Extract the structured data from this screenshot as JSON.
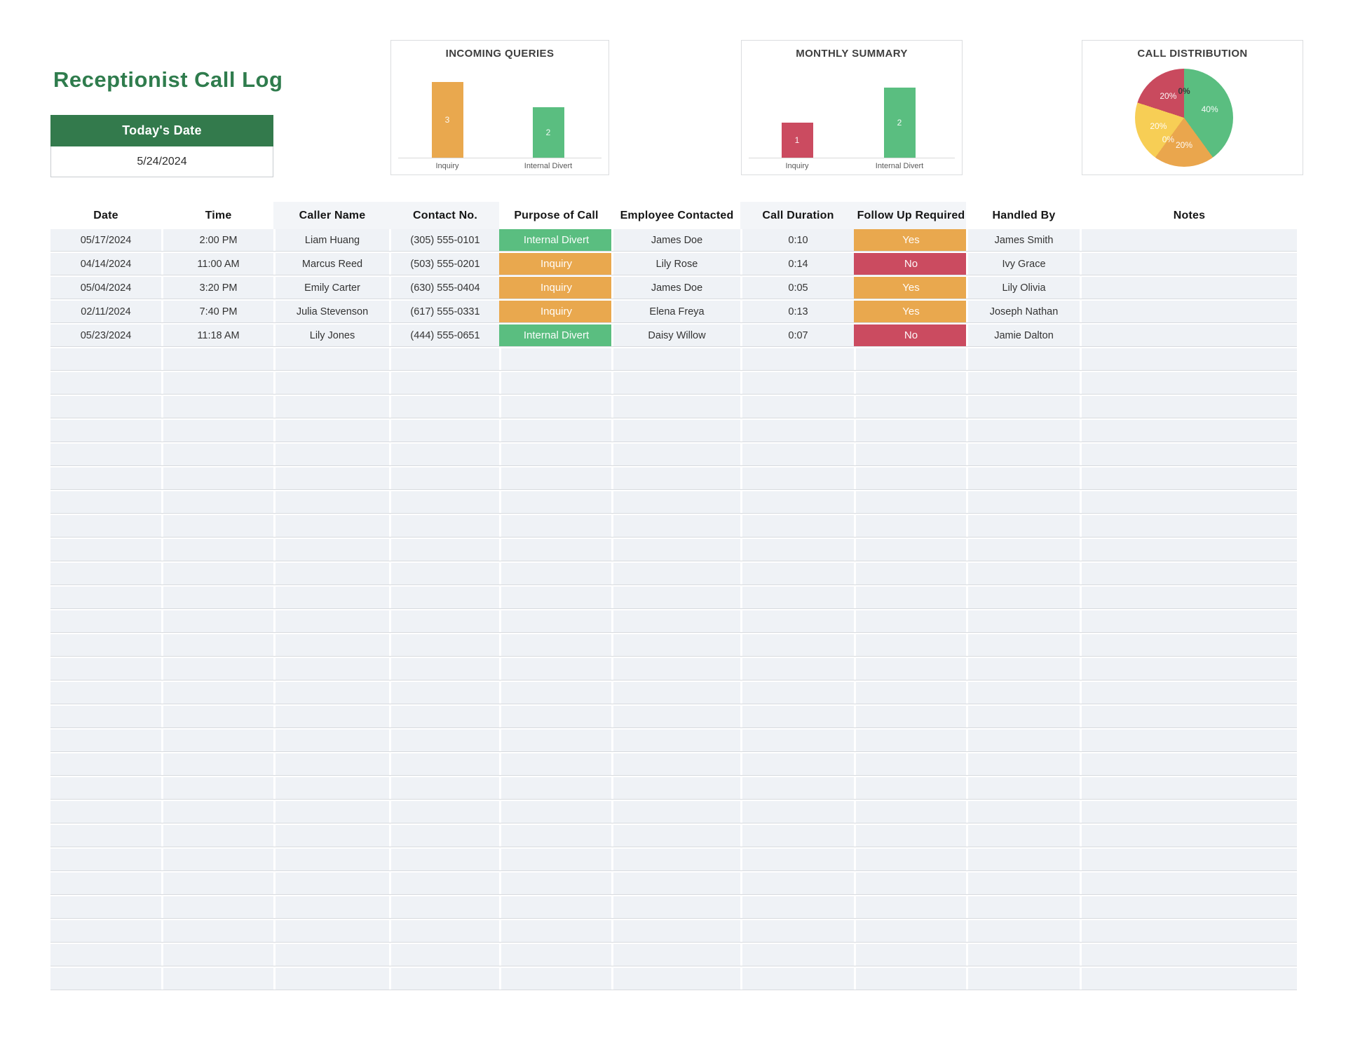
{
  "page": {
    "title": "Receptionist Call Log",
    "colors": {
      "accent_green": "#2F7C4D",
      "header_green": "#337A4C",
      "badge_green": "#5ABE80",
      "badge_orange": "#E9A84E",
      "badge_red": "#CB4B60",
      "pie_yellow": "#F7CE55",
      "row_background": "#EFF2F6"
    }
  },
  "today": {
    "label": "Today's Date",
    "value": "5/24/2024"
  },
  "chart_data": [
    {
      "type": "bar",
      "title": "INCOMING QUERIES",
      "categories": [
        "Inquiry",
        "Internal Divert"
      ],
      "values": [
        3,
        2
      ],
      "colors": [
        "#E9A84E",
        "#5ABE80"
      ],
      "xlabel": "",
      "ylabel": "",
      "ylim": [
        0,
        3.5
      ],
      "grid": false,
      "legend": "none",
      "data_labels": "inside-center"
    },
    {
      "type": "bar",
      "title": "MONTHLY SUMMARY",
      "categories": [
        "Inquiry",
        "Internal Divert"
      ],
      "values": [
        1,
        2
      ],
      "colors": [
        "#CB4B60",
        "#5ABE80"
      ],
      "xlabel": "",
      "ylabel": "",
      "ylim": [
        0,
        2.5
      ],
      "grid": false,
      "legend": "none",
      "data_labels": "inside-center"
    },
    {
      "type": "pie",
      "title": "CALL DISTRIBUTION",
      "slices": [
        {
          "label": "40%",
          "value": 40,
          "color": "#5ABE80",
          "text": "light"
        },
        {
          "label": "20%",
          "value": 20,
          "color": "#EAA64D",
          "text": "light"
        },
        {
          "label": "0%",
          "value": 0,
          "color": null,
          "text": "light"
        },
        {
          "label": "20%",
          "value": 20,
          "color": "#F7CE55",
          "text": "light"
        },
        {
          "label": "20%",
          "value": 20,
          "color": "#C94A5E",
          "text": "light"
        },
        {
          "label": "0%",
          "value": 0,
          "color": null,
          "text": "dark"
        }
      ],
      "legend": "none",
      "data_labels": "percent"
    }
  ],
  "table": {
    "columns": [
      "Date",
      "Time",
      "Caller Name",
      "Contact No.",
      "Purpose of Call",
      "Employee Contacted",
      "Call Duration",
      "Follow Up Required",
      "Handled By",
      "Notes"
    ],
    "rows": [
      {
        "date": "05/17/2024",
        "time": "2:00 PM",
        "caller": "Liam Huang",
        "contact": "(305) 555-0101",
        "purpose": "Internal Divert",
        "employee": "James Doe",
        "duration": "0:10",
        "follow_up": "Yes",
        "handled_by": "James Smith",
        "notes": ""
      },
      {
        "date": "04/14/2024",
        "time": "11:00 AM",
        "caller": "Marcus Reed",
        "contact": "(503) 555-0201",
        "purpose": "Inquiry",
        "employee": "Lily Rose",
        "duration": "0:14",
        "follow_up": "No",
        "handled_by": "Ivy Grace",
        "notes": ""
      },
      {
        "date": "05/04/2024",
        "time": "3:20 PM",
        "caller": "Emily Carter",
        "contact": "(630) 555-0404",
        "purpose": "Inquiry",
        "employee": "James Doe",
        "duration": "0:05",
        "follow_up": "Yes",
        "handled_by": "Lily Olivia",
        "notes": ""
      },
      {
        "date": "02/11/2024",
        "time": "7:40 PM",
        "caller": "Julia Stevenson",
        "contact": "(617) 555-0331",
        "purpose": "Inquiry",
        "employee": "Elena Freya",
        "duration": "0:13",
        "follow_up": "Yes",
        "handled_by": "Joseph Nathan",
        "notes": ""
      },
      {
        "date": "05/23/2024",
        "time": "11:18 AM",
        "caller": "Lily Jones",
        "contact": "(444) 555-0651",
        "purpose": "Internal Divert",
        "employee": "Daisy Willow",
        "duration": "0:07",
        "follow_up": "No",
        "handled_by": "Jamie Dalton",
        "notes": ""
      }
    ],
    "empty_row_count": 27
  }
}
